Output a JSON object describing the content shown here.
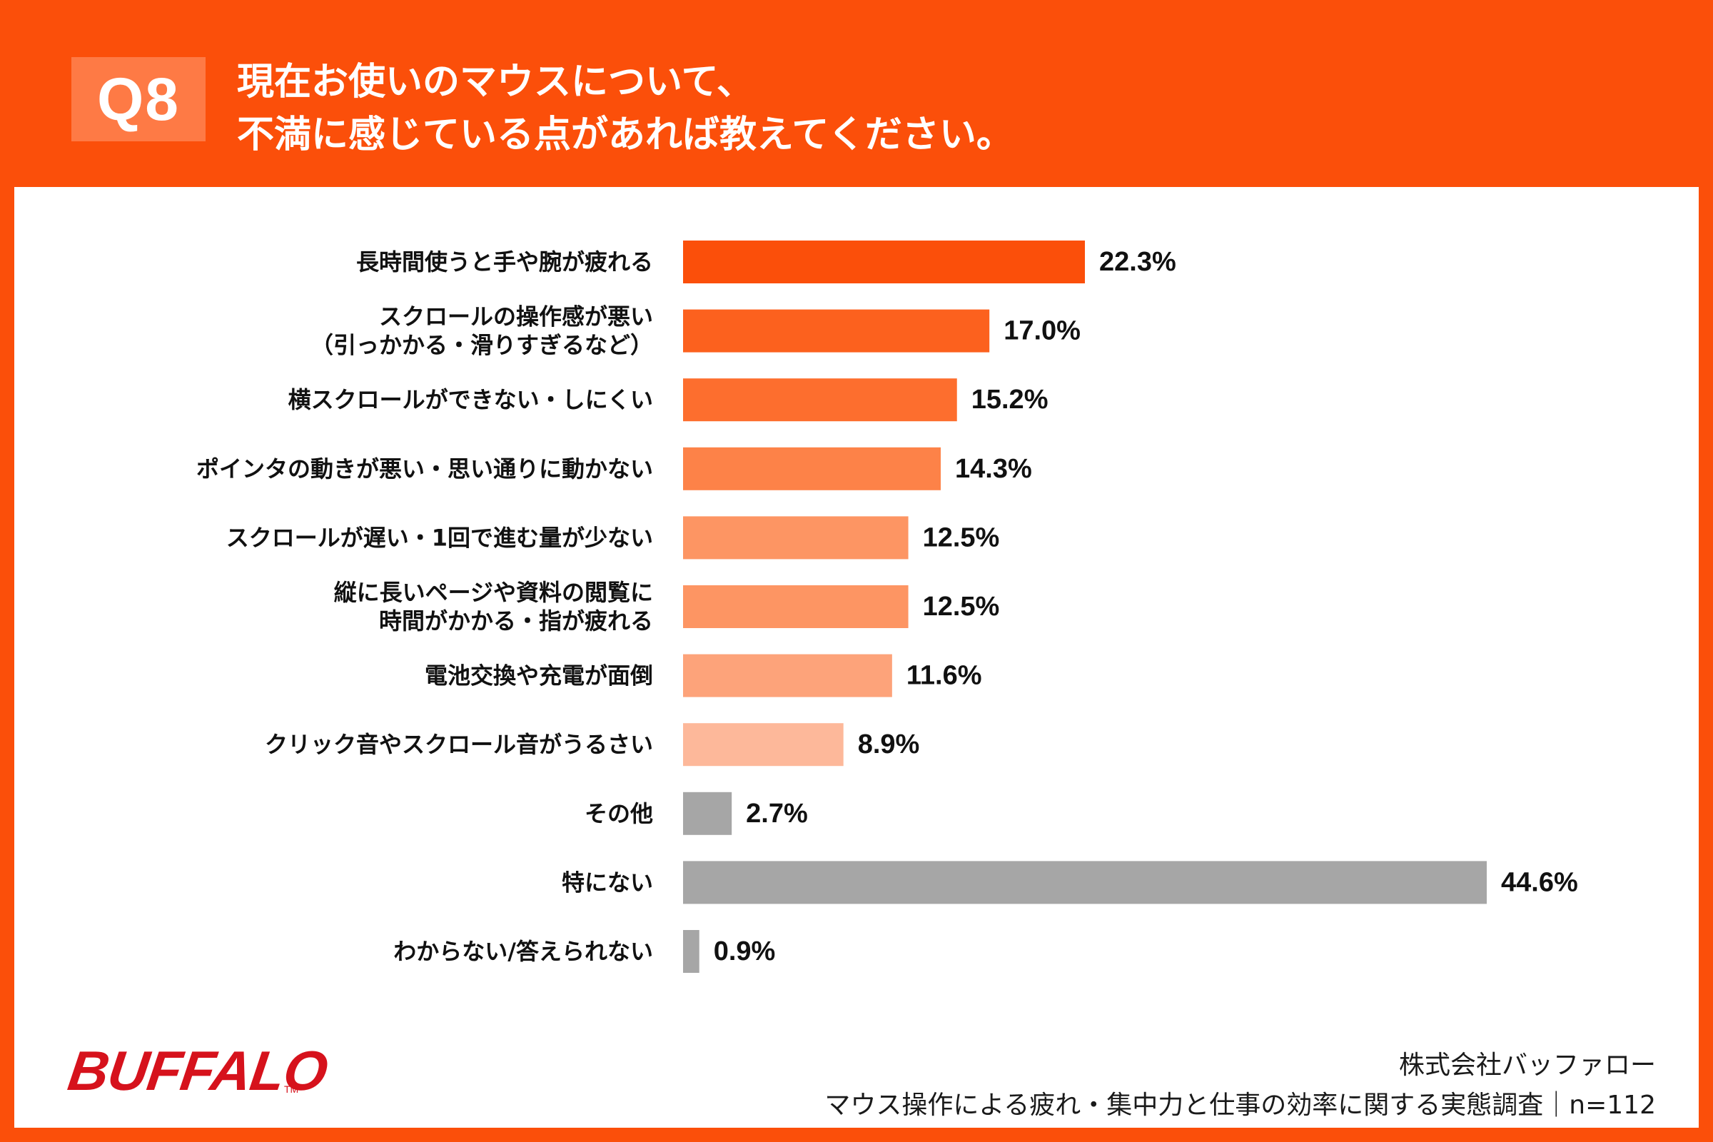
{
  "header": {
    "badge": "Q8",
    "title_line1": "現在お使いのマウスについて、",
    "title_line2": "不満に感じている点があれば教えてください。"
  },
  "colors": {
    "frame": "#fb4f0a",
    "badge_bg": "#fe7a45",
    "bar_scale": [
      "#fb4f0a",
      "#fc611e",
      "#fd6e2e",
      "#fd8248",
      "#fd9563",
      "#fd9563",
      "#fda37a",
      "#fdb89a"
    ],
    "bar_gray": "#a6a6a6",
    "logo": "#d6121c"
  },
  "chart_data": {
    "type": "bar",
    "orientation": "horizontal",
    "unit": "%",
    "categories": [
      [
        "長時間使うと手や腕が疲れる"
      ],
      [
        "スクロールの操作感が悪い",
        "（引っかかる・滑りすぎるなど）"
      ],
      [
        "横スクロールができない・しにくい"
      ],
      [
        "ポインタの動きが悪い・思い通りに動かない"
      ],
      [
        "スクロールが遅い・1回で進む量が少ない"
      ],
      [
        "縦に長いページや資料の閲覧に",
        "時間がかかる・指が疲れる"
      ],
      [
        "電池交換や充電が面倒"
      ],
      [
        "クリック音やスクロール音がうるさい"
      ],
      [
        "その他"
      ],
      [
        "特にない"
      ],
      [
        "わからない/答えられない"
      ]
    ],
    "values": [
      22.3,
      17.0,
      15.2,
      14.3,
      12.5,
      12.5,
      11.6,
      8.9,
      2.7,
      44.6,
      0.9
    ],
    "value_labels": [
      "22.3%",
      "17.0%",
      "15.2%",
      "14.3%",
      "12.5%",
      "12.5%",
      "11.6%",
      "8.9%",
      "2.7%",
      "44.6%",
      "0.9%"
    ],
    "xlim": [
      0,
      50
    ],
    "grid": false,
    "legend": "none"
  },
  "brand": {
    "logo_text": "BUFFALO",
    "tm": "TM"
  },
  "footer": {
    "company": "株式会社バッファロー",
    "survey": "マウス操作による疲れ・集中力と仕事の効率に関する実態調査｜n=112"
  }
}
